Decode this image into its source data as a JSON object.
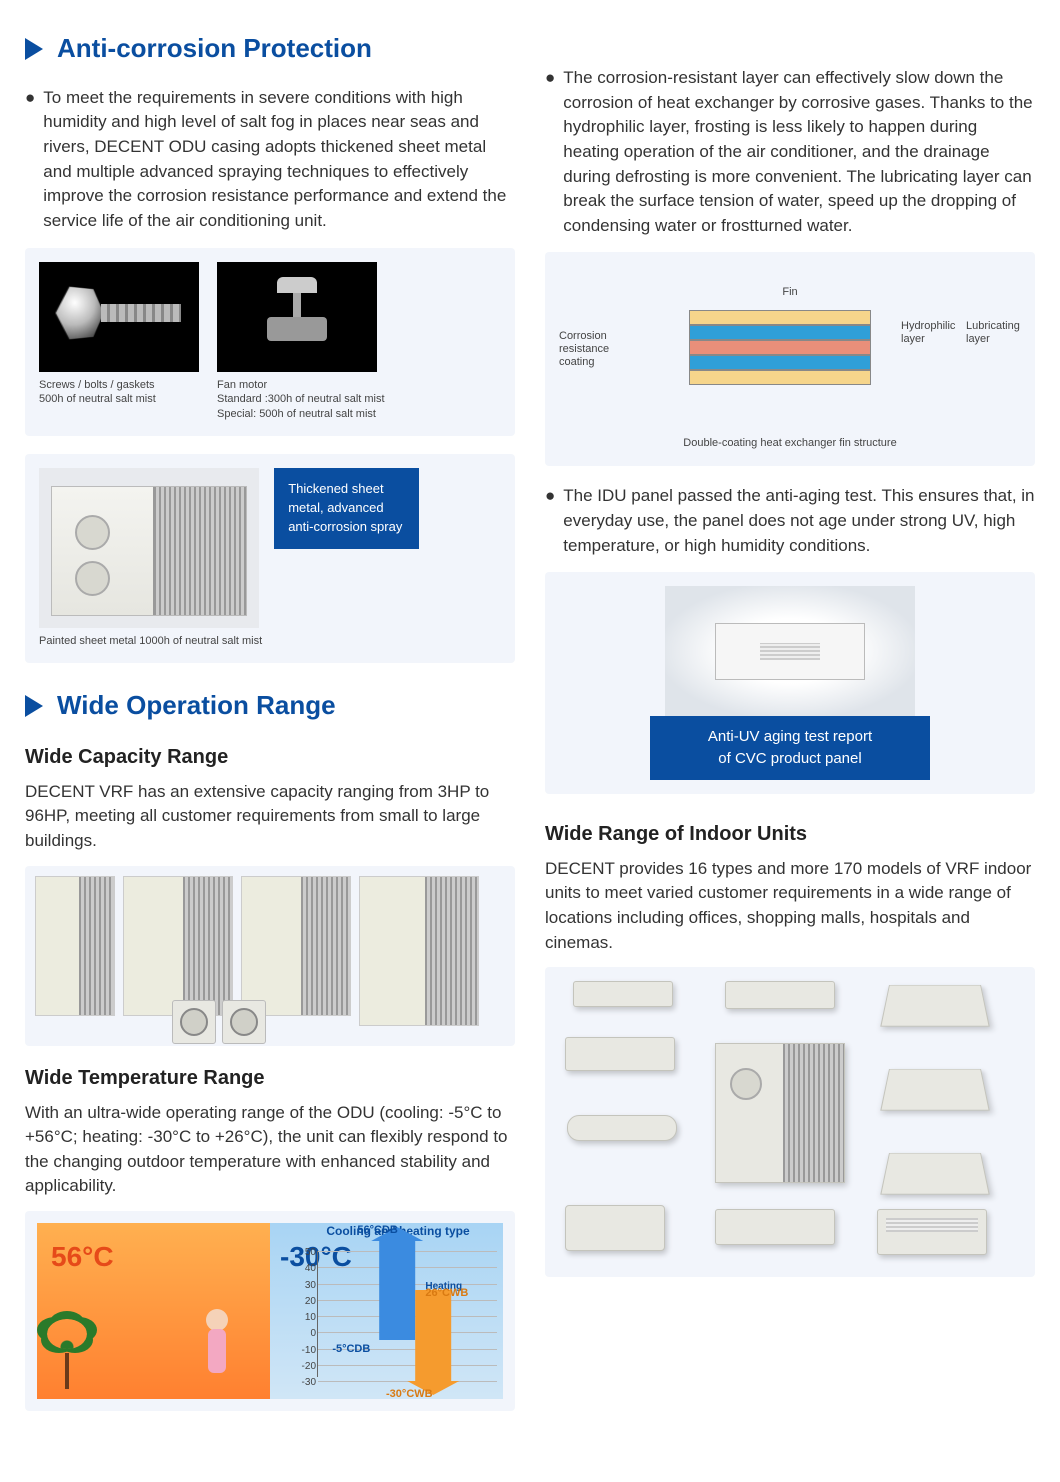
{
  "section1": {
    "title": "Anti-corrosion Protection",
    "left_bullet": "To meet the requirements in severe conditions with high humidity and high level of salt fog in places near seas and rivers, DECENT ODU casing adopts thickened sheet metal and multiple advanced spraying techniques to effectively improve the corrosion resistance performance and extend the service life of the air conditioning unit.",
    "screw_caption_l1": "Screws / bolts / gaskets",
    "screw_caption_l2": "500h of neutral salt mist",
    "fan_caption_l1": "Fan motor",
    "fan_caption_l2": "Standard :300h of neutral salt mist",
    "fan_caption_l3": "Special: 500h of neutral salt mist",
    "odu_caption": "Painted sheet metal 1000h of neutral salt mist",
    "blue_box": "Thickened sheet metal, advanced anti-corrosion spray",
    "right_bullet": "The corrosion-resistant layer can effectively slow down the corrosion of heat exchanger by corrosive gases. Thanks to the hydrophilic layer, frosting is less likely to happen during heating operation of the air conditioner, and the drainage during defrosting is more convenient. The lubricating layer can break the surface tension of water, speed up the dropping of condensing water or frostturned water.",
    "fin": {
      "top_label": "Fin",
      "left_label": "Corrosion resistance coating",
      "right_label_1": "Hydrophilic layer",
      "right_label_2": "Lubricating layer",
      "caption": "Double-coating heat exchanger fin structure",
      "layers": [
        {
          "color": "#f6d58b"
        },
        {
          "color": "#2f9fd8"
        },
        {
          "color": "#e98f7a"
        },
        {
          "color": "#2f9fd8"
        },
        {
          "color": "#f6d58b"
        }
      ]
    },
    "idu_bullet": "The IDU panel passed the anti-aging test. This ensures that, in everyday use, the panel does not age under strong UV, high temperature, or high humidity conditions.",
    "idu_banner_l1": "Anti-UV aging test report",
    "idu_banner_l2": "of CVC product panel"
  },
  "section2": {
    "title": "Wide Operation Range",
    "capacity_title": "Wide Capacity Range",
    "capacity_text": "DECENT VRF has an extensive capacity ranging from 3HP to 96HP, meeting all customer requirements from small to large buildings.",
    "temp_title": "Wide Temperature Range",
    "temp_text": "With an ultra-wide operating range of the ODU (cooling: -5°C to +56°C; heating: -30°C to +26°C), the unit can flexibly respond to the changing outdoor temperature with enhanced stability and applicability.",
    "temp_chart": {
      "title": "Cooling and heating type",
      "cooling_label": "Cooling",
      "heating_label": "Heating",
      "hot_temp": "56°C",
      "hot_color": "#e64a19",
      "cold_temp": "-30°C",
      "cold_color": "#0a4ea0",
      "cooling_top": "56°CDB",
      "cooling_bottom": "-5°CDB",
      "heating_top": "26°CWB",
      "heating_bottom": "-30°CWB",
      "ticks": [
        50,
        40,
        30,
        20,
        10,
        0,
        -10,
        -20,
        -30
      ],
      "up_arrow_color": "#3b8be0",
      "down_arrow_color": "#f59b2e"
    },
    "indoor_title": "Wide Range of Indoor Units",
    "indoor_text": "DECENT provides 16 types and more 170 models of VRF indoor units to meet varied customer requirements in a wide range of locations including offices, shopping malls, hospitals and cinemas."
  },
  "colors": {
    "brand_blue": "#0a4ea0",
    "panel_bg": "#f2f5fb"
  }
}
